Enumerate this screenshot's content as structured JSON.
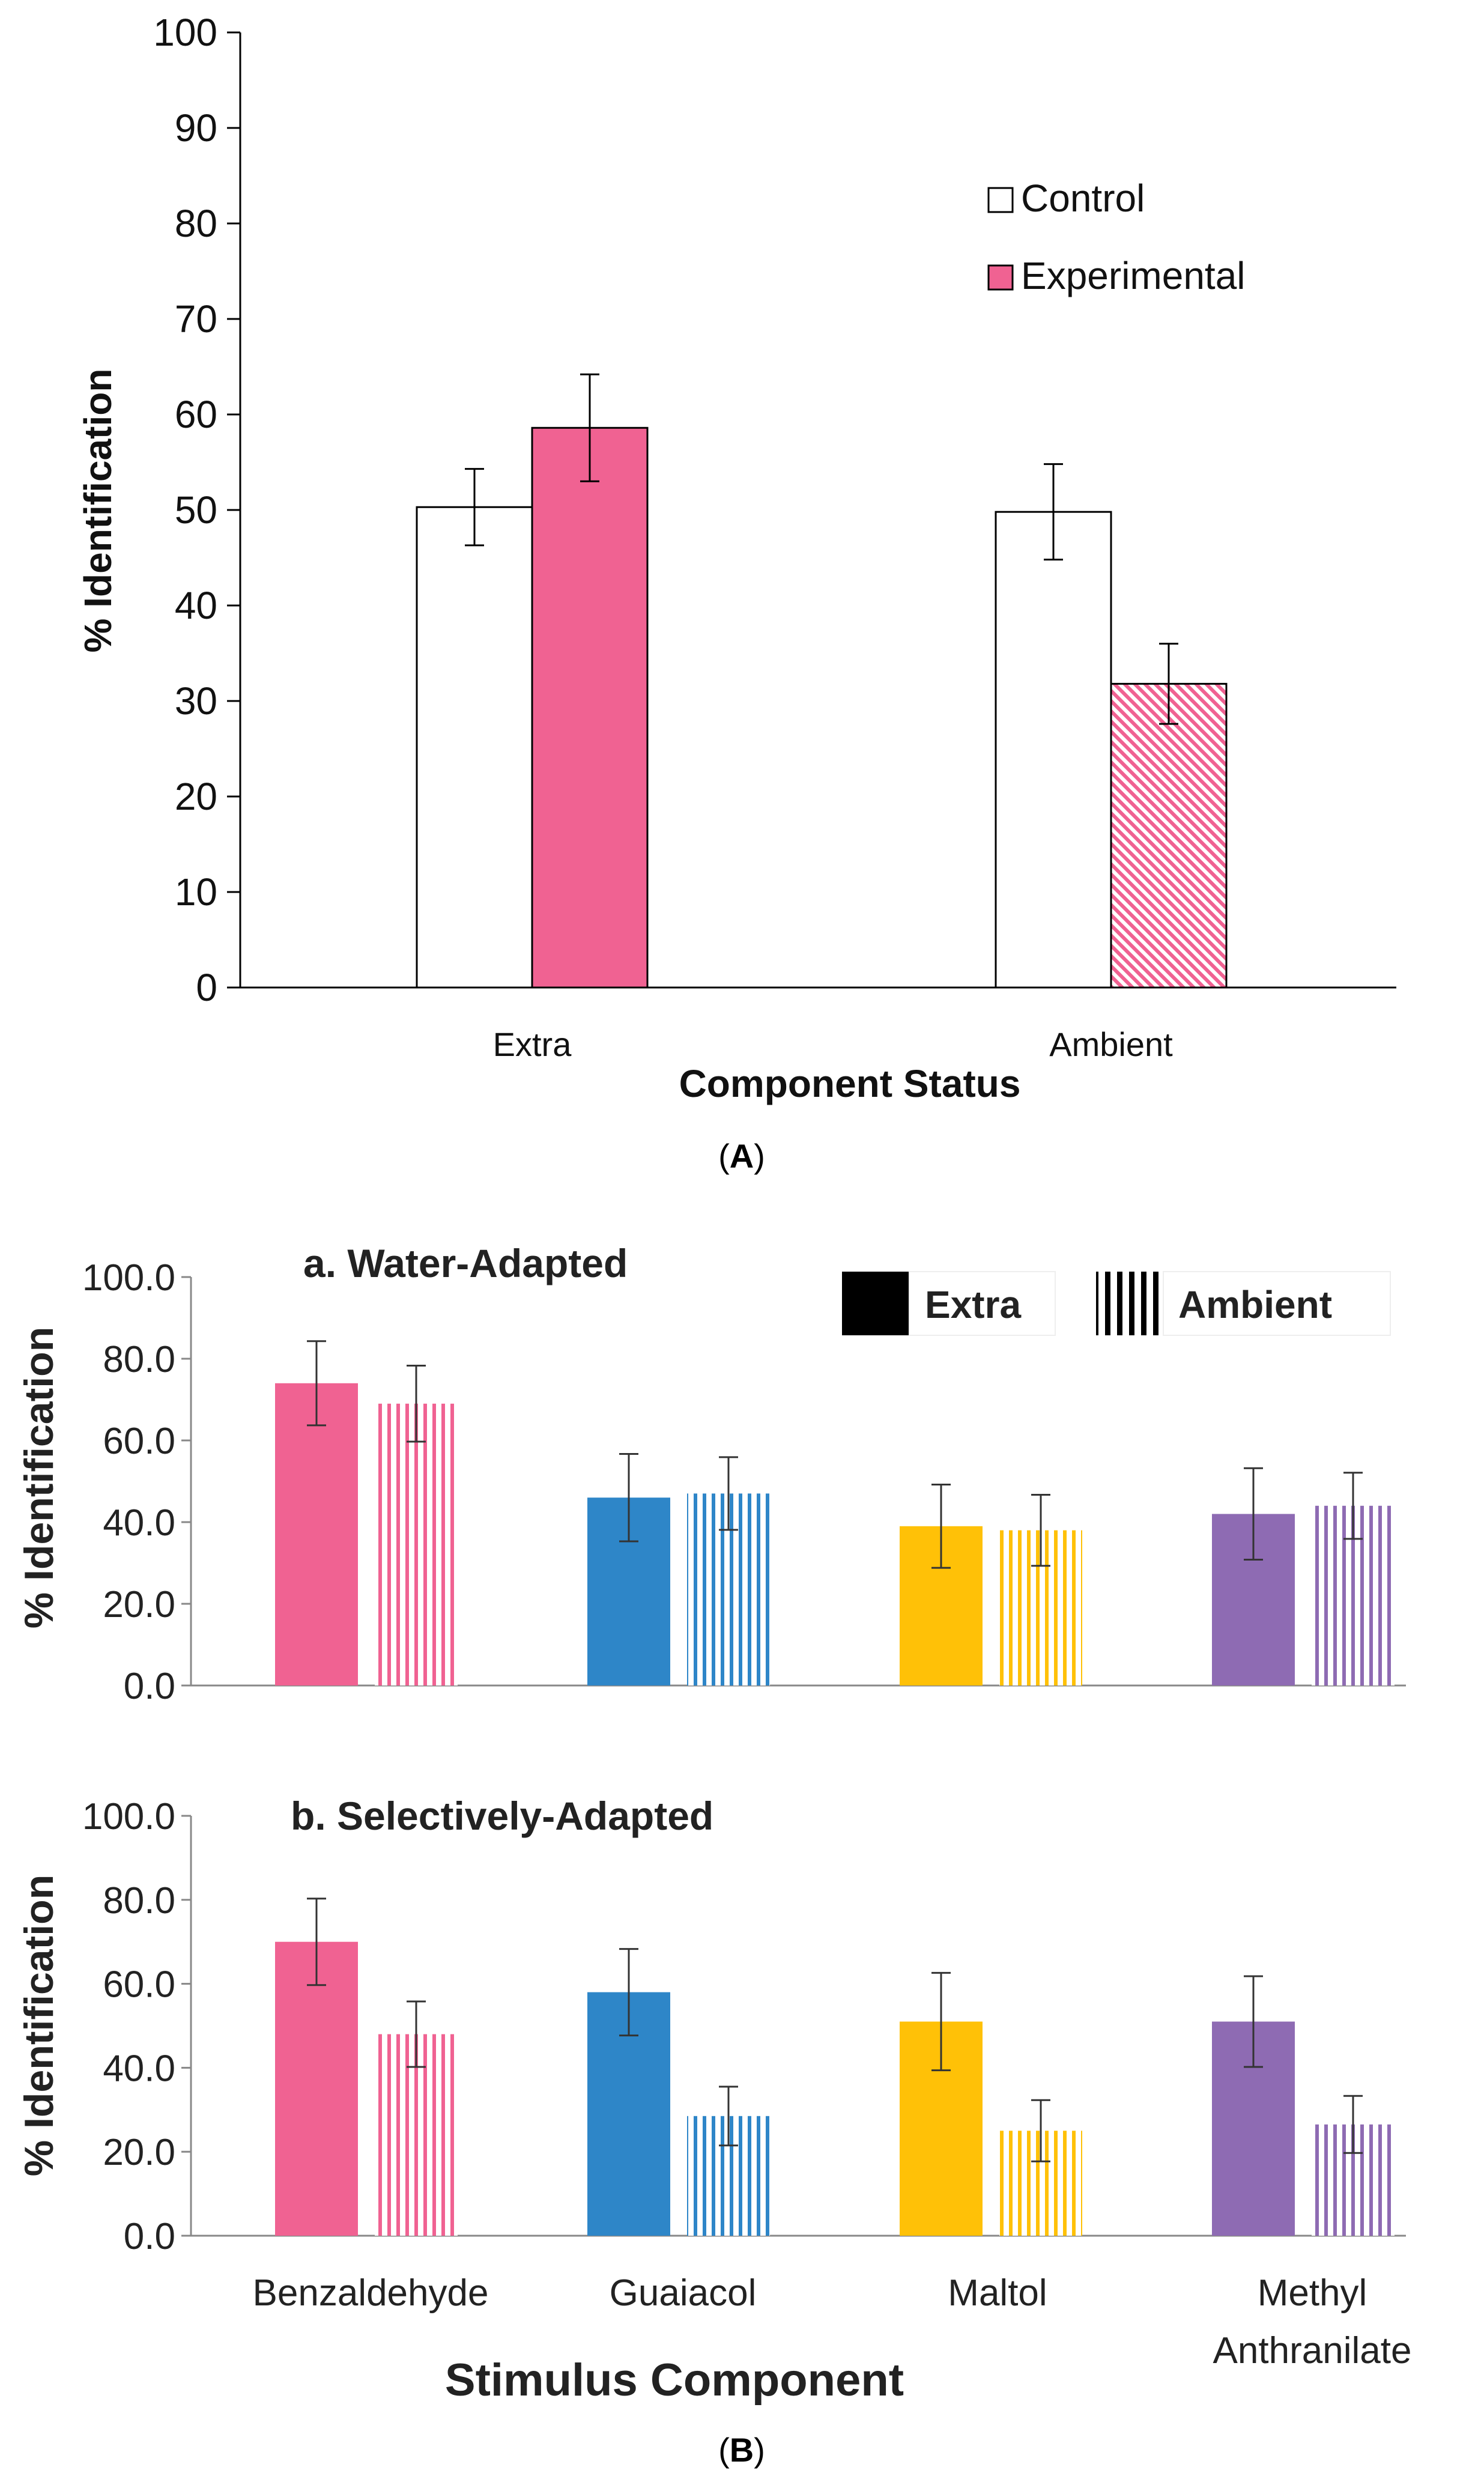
{
  "chart_data": [
    {
      "id": "A",
      "type": "bar",
      "panel_label": "A",
      "title": "",
      "xlabel": "Component Status",
      "ylabel": "% Identification",
      "ylim": [
        0,
        100
      ],
      "yticks": [
        0,
        10,
        20,
        30,
        40,
        50,
        60,
        70,
        80,
        90,
        100
      ],
      "ytick_labels": [
        "0",
        "10",
        "20",
        "30",
        "40",
        "50",
        "60",
        "70",
        "80",
        "90",
        "100"
      ],
      "categories": [
        "Extra",
        "Ambient"
      ],
      "series": [
        {
          "name": "Control",
          "values": [
            50.3,
            49.8
          ],
          "errors": [
            4.0,
            5.0
          ],
          "fill": "#ffffff",
          "pattern": "solid"
        },
        {
          "name": "Experimental",
          "values": [
            58.6,
            31.8
          ],
          "errors": [
            5.6,
            4.2
          ],
          "fill": "#f06292",
          "pattern": [
            "solid",
            "diagonal"
          ]
        }
      ],
      "legend": {
        "position": "top-right",
        "items": [
          "Control",
          "Experimental"
        ]
      },
      "grid": false
    },
    {
      "id": "Ba",
      "type": "bar",
      "title": "a. Water-Adapted",
      "xlabel": "",
      "ylabel": "% Identification",
      "ylim": [
        0,
        100
      ],
      "yticks": [
        0,
        20,
        40,
        60,
        80,
        100
      ],
      "ytick_labels": [
        "0.0",
        "20.0",
        "40.0",
        "60.0",
        "80.0",
        "100.0"
      ],
      "categories": [
        "Benzaldehyde",
        "Guaiacol",
        "Maltol",
        "Methyl Anthranilate"
      ],
      "colors": [
        "#f06292",
        "#2e86c8",
        "#ffc107",
        "#8e6bb3"
      ],
      "series": [
        {
          "name": "Extra",
          "pattern": "solid",
          "values": [
            74.0,
            46.0,
            39.0,
            42.0
          ],
          "errors": [
            10.3,
            10.7,
            10.2,
            11.2
          ]
        },
        {
          "name": "Ambient",
          "pattern": "vertical",
          "values": [
            69.0,
            47.0,
            38.0,
            44.0
          ],
          "errors": [
            9.3,
            8.9,
            8.7,
            8.1
          ]
        }
      ],
      "legend": {
        "position": "top-right",
        "items": [
          "Extra",
          "Ambient"
        ]
      },
      "grid": false
    },
    {
      "id": "Bb",
      "type": "bar",
      "title": "b. Selectively-Adapted",
      "xlabel": "Stimulus Component",
      "ylabel": "% Identification",
      "ylim": [
        0,
        100
      ],
      "yticks": [
        0,
        20,
        40,
        60,
        80,
        100
      ],
      "ytick_labels": [
        "0.0",
        "20.0",
        "40.0",
        "60.0",
        "80.0",
        "100.0"
      ],
      "categories": [
        "Benzaldehyde",
        "Guaiacol",
        "Maltol",
        "Methyl Anthranilate"
      ],
      "category_labels": [
        [
          "Benzaldehyde"
        ],
        [
          "Guaiacol"
        ],
        [
          "Maltol"
        ],
        [
          "Methyl",
          "Anthranilate"
        ]
      ],
      "colors": [
        "#f06292",
        "#2e86c8",
        "#ffc107",
        "#8e6bb3"
      ],
      "series": [
        {
          "name": "Extra",
          "pattern": "solid",
          "values": [
            70.0,
            58.0,
            51.0,
            51.0
          ],
          "errors": [
            10.3,
            10.3,
            11.6,
            10.8
          ]
        },
        {
          "name": "Ambient",
          "pattern": "vertical",
          "values": [
            48.0,
            28.5,
            25.0,
            26.5
          ],
          "errors": [
            7.8,
            7.0,
            7.3,
            6.8
          ]
        }
      ],
      "grid": false
    }
  ],
  "panel_label_B": "B"
}
